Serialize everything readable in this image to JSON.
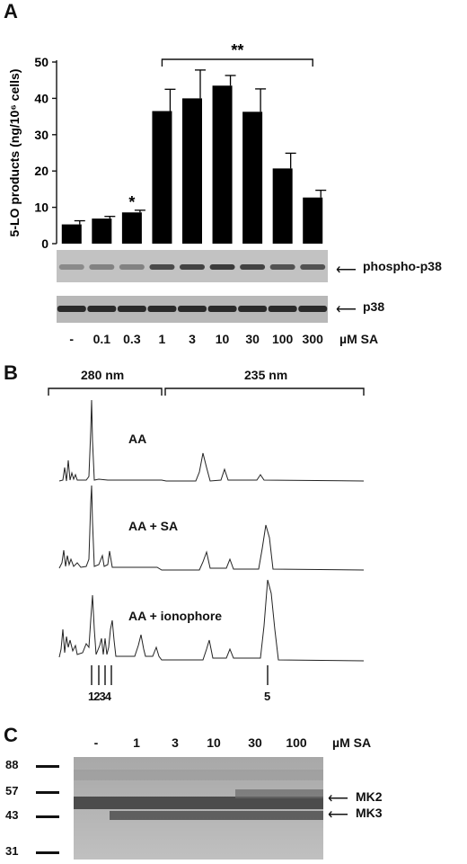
{
  "panel_a": {
    "letter": "A",
    "chart_data": {
      "type": "bar",
      "categories": [
        "-",
        "0.1",
        "0.3",
        "1",
        "3",
        "10",
        "30",
        "100",
        "300"
      ],
      "values": [
        5.3,
        6.9,
        8.6,
        36.5,
        40.0,
        43.5,
        36.3,
        20.7,
        12.7
      ],
      "errors": [
        1.0,
        0.6,
        0.6,
        6.0,
        7.8,
        2.8,
        6.3,
        4.2,
        2.0
      ],
      "title": "",
      "xlabel": "µM SA",
      "ylabel": "5-LO products (ng/10⁶ cells)",
      "ylim": [
        0,
        50
      ],
      "yticks": [
        0,
        10,
        20,
        30,
        40,
        50
      ],
      "annotations": [
        {
          "text": "*",
          "category": "0.3"
        },
        {
          "text": "**",
          "from": "1",
          "to": "300"
        }
      ],
      "grid": false,
      "legend": "none"
    },
    "blots": [
      {
        "label": "phospho-p38"
      },
      {
        "label": "p38"
      }
    ],
    "unit_label": "µM SA"
  },
  "panel_b": {
    "letter": "B",
    "wavelengths": [
      "280 nm",
      "235 nm"
    ],
    "traces": [
      {
        "label": "AA"
      },
      {
        "label": "AA + SA"
      },
      {
        "label": "AA + ionophore"
      }
    ],
    "peak_labels": [
      "1234",
      "5"
    ]
  },
  "panel_c": {
    "letter": "C",
    "lanes": [
      "-",
      "1",
      "3",
      "10",
      "30",
      "100"
    ],
    "unit_label": "µM SA",
    "markers": [
      "88",
      "57",
      "43",
      "31"
    ],
    "bands": [
      "MK2",
      "MK3"
    ]
  }
}
